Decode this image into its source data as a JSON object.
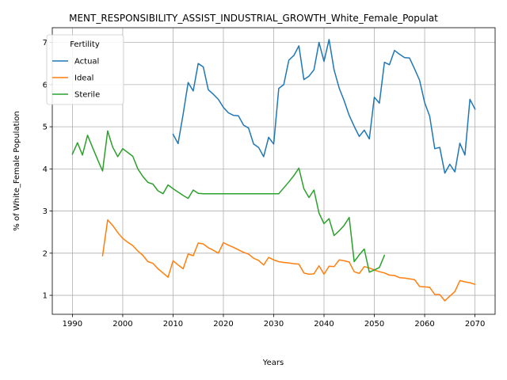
{
  "chart_data": {
    "type": "line",
    "title": "MENT_RESPONSIBILITY_ASSIST_INDUSTRIAL_GROWTH_White_Female_Populat",
    "xlabel": "Years",
    "ylabel": "% of White_Female Population",
    "xlim": [
      1986,
      2074
    ],
    "ylim": [
      0.55,
      7.35
    ],
    "xticks": [
      1990,
      2000,
      2010,
      2020,
      2030,
      2040,
      2050,
      2060,
      2070
    ],
    "yticks": [
      1,
      2,
      3,
      4,
      5,
      6,
      7
    ],
    "grid": true,
    "legend": {
      "title": "Fertility",
      "placement": "top-left"
    },
    "series": [
      {
        "name": "Actual",
        "color": "#1f77b4",
        "x": [
          2010,
          2011,
          2012,
          2013,
          2014,
          2015,
          2016,
          2017,
          2018,
          2019,
          2020,
          2021,
          2022,
          2023,
          2024,
          2025,
          2026,
          2027,
          2028,
          2029,
          2030,
          2031,
          2032,
          2033,
          2034,
          2035,
          2036,
          2037,
          2038,
          2039,
          2040,
          2041,
          2042,
          2043,
          2044,
          2045,
          2046,
          2047,
          2048,
          2049,
          2050,
          2051,
          2052,
          2053,
          2054,
          2055,
          2056,
          2057,
          2058,
          2059,
          2060,
          2061,
          2062,
          2063,
          2064,
          2065,
          2066,
          2067,
          2068,
          2069,
          2070
        ],
        "y": [
          4.82,
          4.6,
          5.3,
          6.05,
          5.85,
          6.5,
          6.42,
          5.88,
          5.77,
          5.65,
          5.46,
          5.33,
          5.27,
          5.26,
          5.04,
          4.97,
          4.59,
          4.51,
          4.29,
          4.75,
          4.59,
          5.91,
          6.0,
          6.58,
          6.69,
          6.92,
          6.12,
          6.2,
          6.35,
          7.0,
          6.55,
          7.07,
          6.35,
          5.92,
          5.62,
          5.27,
          5.01,
          4.77,
          4.92,
          4.71,
          5.7,
          5.56,
          6.53,
          6.47,
          6.81,
          6.72,
          6.64,
          6.63,
          6.37,
          6.1,
          5.57,
          5.25,
          4.48,
          4.51,
          3.9,
          4.11,
          3.93,
          4.61,
          4.33,
          5.65,
          5.42
        ]
      },
      {
        "name": "Ideal",
        "color": "#ff7f0e",
        "x": [
          1996,
          1997,
          1998,
          1999,
          2000,
          2001,
          2002,
          2003,
          2004,
          2005,
          2006,
          2007,
          2008,
          2009,
          2010,
          2011,
          2012,
          2013,
          2014,
          2015,
          2016,
          2017,
          2018,
          2019,
          2020,
          2021,
          2022,
          2023,
          2024,
          2025,
          2026,
          2027,
          2028,
          2029,
          2030,
          2031,
          2032,
          2033,
          2034,
          2035,
          2036,
          2037,
          2038,
          2039,
          2040,
          2041,
          2042,
          2043,
          2044,
          2045,
          2046,
          2047,
          2048,
          2049,
          2050,
          2051,
          2052,
          2053,
          2054,
          2055,
          2056,
          2057,
          2058,
          2059,
          2060,
          2061,
          2062,
          2063,
          2064,
          2065,
          2066,
          2067,
          2068,
          2069,
          2070
        ],
        "y": [
          1.94,
          2.79,
          2.66,
          2.49,
          2.35,
          2.26,
          2.18,
          2.05,
          1.95,
          1.8,
          1.76,
          1.63,
          1.53,
          1.43,
          1.82,
          1.72,
          1.63,
          1.98,
          1.94,
          2.24,
          2.22,
          2.13,
          2.07,
          2.0,
          2.25,
          2.19,
          2.14,
          2.08,
          2.02,
          1.98,
          1.88,
          1.83,
          1.72,
          1.9,
          1.84,
          1.8,
          1.78,
          1.77,
          1.75,
          1.74,
          1.53,
          1.5,
          1.51,
          1.7,
          1.5,
          1.69,
          1.68,
          1.84,
          1.82,
          1.79,
          1.56,
          1.52,
          1.68,
          1.65,
          1.6,
          1.56,
          1.53,
          1.48,
          1.47,
          1.42,
          1.41,
          1.39,
          1.37,
          1.21,
          1.2,
          1.19,
          1.02,
          1.02,
          0.87,
          0.98,
          1.09,
          1.35,
          1.32,
          1.3,
          1.26
        ]
      },
      {
        "name": "Sterile",
        "color": "#2ca02c",
        "x": [
          1990,
          1991,
          1992,
          1993,
          1994,
          1995,
          1996,
          1997,
          1998,
          1999,
          2000,
          2001,
          2002,
          2003,
          2004,
          2005,
          2006,
          2007,
          2008,
          2009,
          2010,
          2011,
          2012,
          2013,
          2014,
          2015,
          2016,
          2017,
          2018,
          2019,
          2020,
          2021,
          2022,
          2023,
          2024,
          2025,
          2026,
          2027,
          2028,
          2029,
          2030,
          2031,
          2032,
          2033,
          2034,
          2035,
          2036,
          2037,
          2038,
          2039,
          2040,
          2041,
          2042,
          2043,
          2044,
          2045,
          2046,
          2047,
          2048,
          2049,
          2050,
          2051,
          2052
        ],
        "y": [
          4.35,
          4.62,
          4.33,
          4.8,
          4.51,
          4.22,
          3.95,
          4.9,
          4.52,
          4.29,
          4.48,
          4.39,
          4.3,
          4.0,
          3.82,
          3.68,
          3.64,
          3.48,
          3.41,
          3.62,
          3.53,
          3.45,
          3.37,
          3.3,
          3.5,
          3.42,
          3.41,
          3.41,
          3.41,
          3.41,
          3.41,
          3.41,
          3.41,
          3.41,
          3.41,
          3.41,
          3.41,
          3.41,
          3.41,
          3.41,
          3.41,
          3.41,
          3.55,
          3.69,
          3.84,
          4.02,
          3.53,
          3.32,
          3.5,
          2.95,
          2.7,
          2.82,
          2.42,
          2.53,
          2.66,
          2.85,
          1.8,
          1.96,
          2.1,
          1.55,
          1.6,
          1.66,
          1.95
        ]
      }
    ]
  }
}
